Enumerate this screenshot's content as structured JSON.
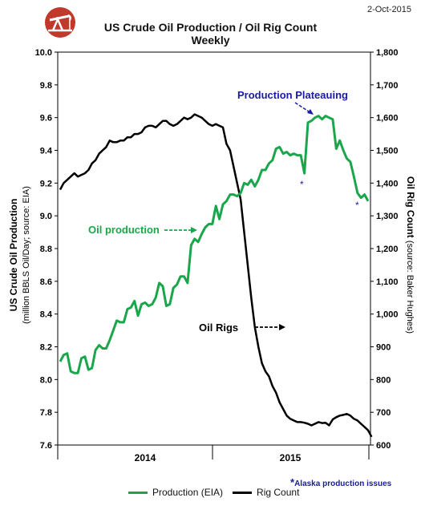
{
  "header": {
    "date": "2-Oct-2015",
    "title": "US Crude Oil Production / Oil Rig Count",
    "subtitle": "Weekly"
  },
  "logo": {
    "icon": "oil-pumpjack-icon",
    "color": "#c0392b"
  },
  "annotations": {
    "plateau": "Production Plateauing",
    "oil_production": "Oil production",
    "oil_rigs": "Oil Rigs",
    "alaska_note": "Alaska production issues",
    "asterisk": "*"
  },
  "legend": {
    "production_label": "Production (EIA)",
    "rig_label": "Rig Count"
  },
  "axes": {
    "left_title": "US Crude Oil Production",
    "left_subtitle": "(million BBLS Oil/Day; source: EIA)",
    "right_title": "Oil Rig Count",
    "right_subtitle": "(source: Baker Hughes)"
  },
  "chart_data": {
    "type": "line",
    "x_tick_labels": [
      "2014",
      "2015"
    ],
    "y_left": {
      "min": 7.6,
      "max": 10.0,
      "step": 0.2,
      "ticks": [
        "7.6",
        "7.8",
        "8.0",
        "8.2",
        "8.4",
        "8.6",
        "8.8",
        "9.0",
        "9.2",
        "9.4",
        "9.6",
        "9.8",
        "10.0"
      ]
    },
    "y_right": {
      "min": 600,
      "max": 1800,
      "step": 100,
      "ticks": [
        "600",
        "700",
        "800",
        "900",
        "1,000",
        "1,100",
        "1,200",
        "1,300",
        "1,400",
        "1,500",
        "1,600",
        "1,700",
        "1,800"
      ]
    },
    "grid": false,
    "colors": {
      "production": "#1aa64a",
      "rigs": "#000000",
      "annotation": "#1a1aa8"
    },
    "series": [
      {
        "name": "Production (EIA)",
        "axis": "left",
        "values": [
          8.11,
          8.15,
          8.16,
          8.05,
          8.04,
          8.04,
          8.13,
          8.14,
          8.06,
          8.07,
          8.18,
          8.21,
          8.19,
          8.19,
          8.24,
          8.3,
          8.36,
          8.35,
          8.35,
          8.43,
          8.44,
          8.48,
          8.39,
          8.46,
          8.47,
          8.45,
          8.46,
          8.5,
          8.59,
          8.57,
          8.45,
          8.46,
          8.56,
          8.58,
          8.63,
          8.63,
          8.59,
          8.82,
          8.86,
          8.84,
          8.89,
          8.93,
          8.95,
          8.95,
          9.06,
          8.98,
          9.07,
          9.09,
          9.13,
          9.13,
          9.12,
          9.14,
          9.2,
          9.19,
          9.22,
          9.18,
          9.22,
          9.28,
          9.28,
          9.32,
          9.34,
          9.41,
          9.42,
          9.38,
          9.39,
          9.37,
          9.38,
          9.37,
          9.37,
          9.26,
          9.57,
          9.58,
          9.6,
          9.61,
          9.59,
          9.61,
          9.6,
          9.59,
          9.41,
          9.46,
          9.4,
          9.35,
          9.33,
          9.24,
          9.14,
          9.11,
          9.13,
          9.09
        ]
      },
      {
        "name": "Rig Count",
        "axis": "right",
        "values": [
          1380,
          1400,
          1410,
          1420,
          1430,
          1420,
          1425,
          1430,
          1440,
          1460,
          1470,
          1490,
          1500,
          1510,
          1530,
          1525,
          1525,
          1530,
          1530,
          1540,
          1540,
          1550,
          1550,
          1555,
          1570,
          1575,
          1575,
          1570,
          1580,
          1590,
          1590,
          1580,
          1575,
          1580,
          1590,
          1600,
          1595,
          1600,
          1610,
          1605,
          1600,
          1590,
          1580,
          1575,
          1580,
          1575,
          1570,
          1520,
          1500,
          1450,
          1400,
          1350,
          1250,
          1150,
          1050,
          960,
          900,
          850,
          825,
          810,
          780,
          760,
          730,
          710,
          690,
          680,
          675,
          670,
          670,
          668,
          665,
          660,
          665,
          670,
          667,
          668,
          660,
          678,
          685,
          690,
          692,
          695,
          690,
          680,
          675,
          665,
          655,
          645,
          625
        ]
      }
    ]
  }
}
